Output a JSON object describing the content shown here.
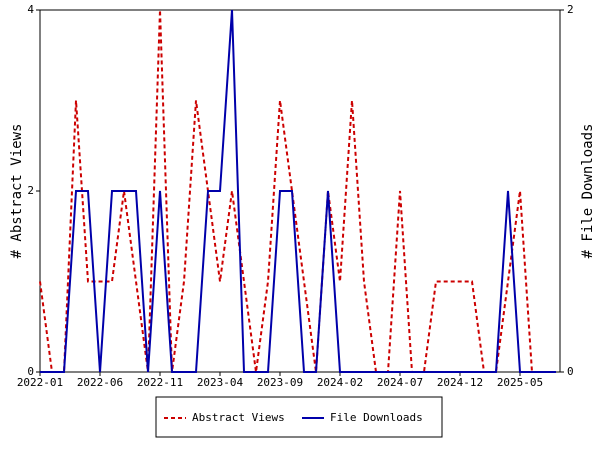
{
  "chart_data": {
    "type": "line",
    "categories": [
      "2022-01",
      null,
      null,
      null,
      null,
      "2022-06",
      null,
      null,
      null,
      null,
      "2022-11",
      null,
      null,
      null,
      null,
      "2023-04",
      null,
      null,
      null,
      null,
      "2023-09",
      null,
      null,
      null,
      null,
      "2024-02",
      null,
      null,
      null,
      null,
      "2024-07",
      null,
      null,
      null,
      null,
      "2024-12",
      null,
      null,
      null,
      null,
      "2025-05",
      null,
      null,
      null
    ],
    "y_label": "# Abstract Views",
    "y2_label": "# File Downloads",
    "ylim": [
      0,
      4
    ],
    "yticks": [
      0,
      2,
      4
    ],
    "y2lim": [
      0,
      2
    ],
    "y2ticks": [
      0,
      2
    ],
    "legend": "bottom",
    "series": [
      {
        "name": "Abstract Views",
        "color": "#cc0000",
        "dash": true,
        "values": [
          1,
          0,
          0,
          3,
          1,
          1,
          1,
          2,
          1,
          0,
          4,
          0,
          1,
          3,
          2,
          1,
          2,
          1,
          0,
          1,
          3,
          2,
          1,
          0,
          2,
          1,
          3,
          1,
          0,
          0,
          2,
          0,
          0,
          1,
          1,
          1,
          1,
          0,
          0,
          1,
          2,
          0,
          0,
          0
        ]
      },
      {
        "name": "File Downloads",
        "color": "#0000aa",
        "dash": false,
        "axis": "y2",
        "values": [
          0,
          0,
          0,
          1,
          1,
          0,
          1,
          1,
          1,
          0,
          1,
          0,
          0,
          0,
          1,
          1,
          2,
          0,
          0,
          0,
          1,
          1,
          0,
          0,
          1,
          0,
          0,
          0,
          0,
          0,
          0,
          0,
          0,
          0,
          0,
          0,
          0,
          0,
          0,
          1,
          0,
          0,
          0,
          0
        ]
      }
    ]
  }
}
